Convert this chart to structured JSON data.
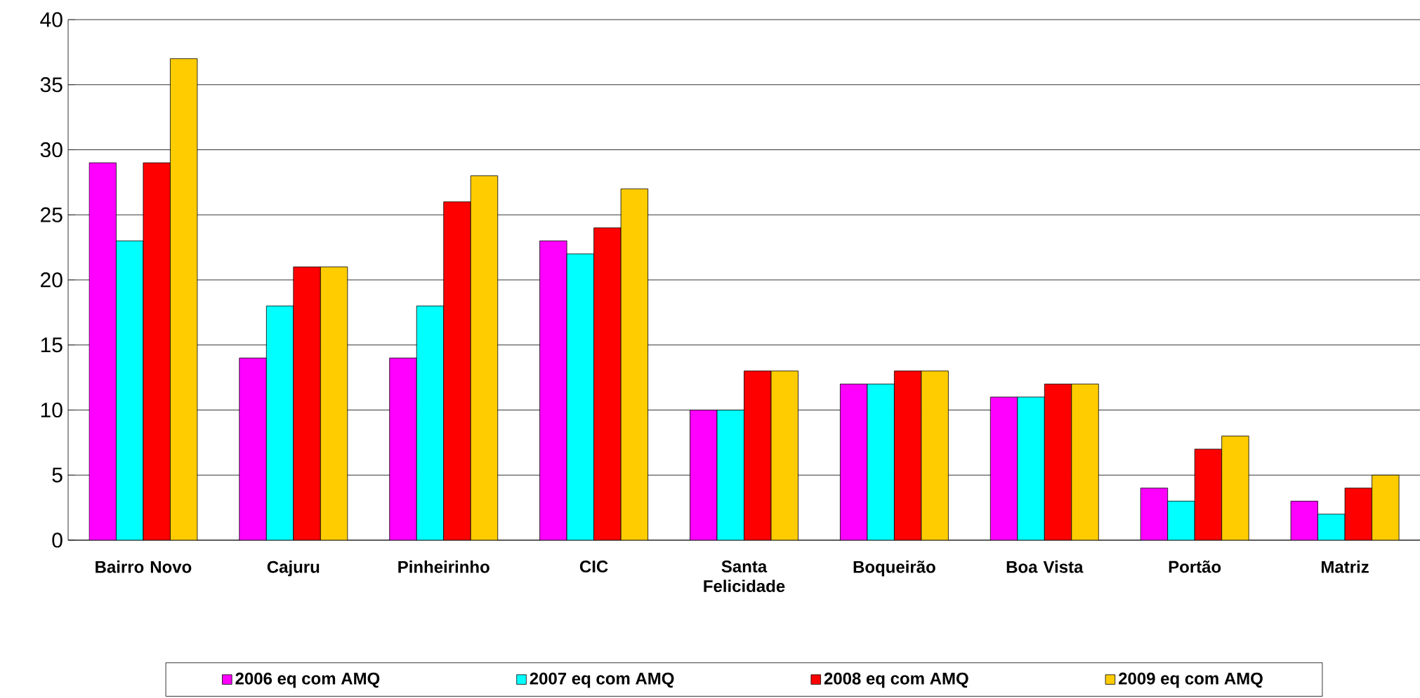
{
  "chart_data": {
    "type": "bar",
    "categories": [
      "Bairro Novo",
      "Cajuru",
      "Pinheirinho",
      "CIC",
      "Santa Felicidade",
      "Boqueirão",
      "Boa Vista",
      "Portão",
      "Matriz"
    ],
    "series": [
      {
        "name": "2006 eq com AMQ",
        "color": "#ff00ff",
        "values": [
          29,
          14,
          14,
          23,
          10,
          12,
          11,
          4,
          3
        ]
      },
      {
        "name": "2007 eq com AMQ",
        "color": "#00ffff",
        "values": [
          23,
          18,
          18,
          22,
          10,
          12,
          11,
          3,
          2
        ]
      },
      {
        "name": "2008 eq com AMQ",
        "color": "#ff0000",
        "values": [
          29,
          21,
          26,
          24,
          13,
          13,
          12,
          7,
          4
        ]
      },
      {
        "name": "2009 eq com AMQ",
        "color": "#ffcc00",
        "values": [
          37,
          21,
          28,
          27,
          13,
          13,
          12,
          8,
          5
        ]
      }
    ],
    "ylim": [
      0,
      40
    ],
    "yticks": [
      0,
      5,
      10,
      15,
      20,
      25,
      30,
      35,
      40
    ],
    "grid": "y",
    "legend": "bottom"
  }
}
